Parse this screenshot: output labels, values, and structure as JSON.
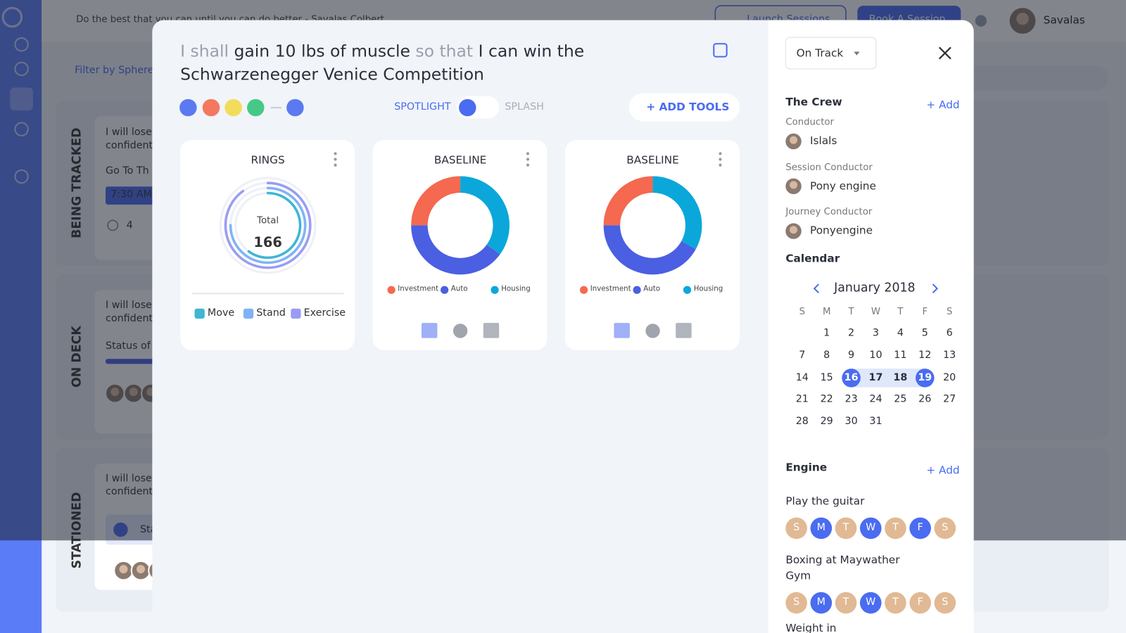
{
  "app": {
    "quote": "Do the best that you can until you can do better - Savalas Colbert",
    "buttons": [
      "Launch Sessions",
      "Book A Session"
    ],
    "user": "Savalas",
    "filter": "Filter by Sphere",
    "lanes": [
      {
        "title": "BEING TRACKED",
        "texts": [
          "I will lose",
          "confident",
          "Go To Th",
          "7:30 AM",
          "4"
        ]
      },
      {
        "title": "ON DECK",
        "texts": [
          "I will lose",
          "confident",
          "Status of c"
        ]
      },
      {
        "title": "STATIONED",
        "texts": [
          "I will lose",
          "confident",
          "Sta"
        ]
      }
    ]
  },
  "modal": {
    "title_parts": [
      "I shall",
      "gain 10 lbs of muscle",
      "so that",
      "I can win the Schwarzenegger Venice Competition"
    ],
    "toggle": [
      "SPOTLIGHT",
      "SPLASH"
    ],
    "add_tools": "+ ADD TOOLS",
    "widgets": [
      {
        "type": "rings",
        "title": "RINGS",
        "total_label": "Total",
        "total": 166,
        "series": [
          {
            "name": "Move",
            "color": "#3fb6d3",
            "value": 60
          },
          {
            "name": "Stand",
            "color": "#7fb3f6",
            "value": 75
          },
          {
            "name": "Exercise",
            "color": "#9a9cf4",
            "value": 90
          }
        ]
      },
      {
        "type": "pie",
        "title": "BASELINE",
        "series": [
          {
            "name": "Investment",
            "color": "#f4694f",
            "value": 25
          },
          {
            "name": "Auto",
            "color": "#4a5fe2",
            "value": 40
          },
          {
            "name": "Housing",
            "color": "#0ba7da",
            "value": 35
          }
        ]
      },
      {
        "type": "pie",
        "title": "BASELINE",
        "series": [
          {
            "name": "Investment",
            "color": "#f4694f",
            "value": 25
          },
          {
            "name": "Auto",
            "color": "#4a5fe2",
            "value": 42
          },
          {
            "name": "Housing",
            "color": "#0ba7da",
            "value": 33
          }
        ]
      }
    ],
    "status": "On Track",
    "crew": {
      "title": "The Crew",
      "add": "+ Add",
      "members": [
        {
          "role": "Conductor",
          "name": "Islals"
        },
        {
          "role": "Session Conductor",
          "name": "Pony engine"
        },
        {
          "role": "Journey Conductor",
          "name": "Ponyengine"
        }
      ]
    },
    "calendar": {
      "title": "Calendar",
      "month": "January 2018",
      "weekdays": [
        "S",
        "M",
        "T",
        "W",
        "T",
        "F",
        "S"
      ],
      "first_weekday": 1,
      "days": [
        1,
        2,
        3,
        4,
        5,
        6,
        7,
        8,
        9,
        10,
        11,
        12,
        13,
        14,
        15,
        16,
        17,
        18,
        19,
        20,
        21,
        22,
        23,
        24,
        25,
        26,
        27,
        28,
        29,
        30,
        31
      ],
      "range": [
        16,
        19
      ]
    },
    "engine": {
      "title": "Engine",
      "add": "+ Add",
      "items": [
        {
          "name": "Play the guitar",
          "days": [
            "S",
            "M",
            "T",
            "W",
            "T",
            "F",
            "S"
          ],
          "active": [
            false,
            true,
            false,
            true,
            false,
            true,
            false
          ]
        },
        {
          "name": "Boxing at Maywather Gym",
          "days": [
            "S",
            "M",
            "T",
            "W",
            "T",
            "F",
            "S"
          ],
          "active": [
            false,
            true,
            false,
            true,
            false,
            false,
            false
          ]
        },
        {
          "name": "Weight in"
        }
      ]
    }
  }
}
